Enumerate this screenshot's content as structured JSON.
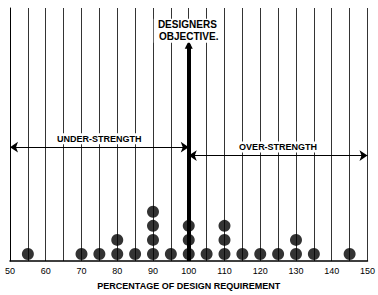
{
  "chart_data": {
    "type": "dot",
    "x_label": "PERCENTAGE OF DESIGN REQUIREMENT",
    "x": [
      55,
      70,
      75,
      80,
      85,
      90,
      95,
      100,
      105,
      110,
      115,
      120,
      125,
      130,
      135,
      145
    ],
    "values": [
      1,
      1,
      1,
      2,
      1,
      4,
      1,
      3,
      1,
      3,
      1,
      1,
      1,
      2,
      1,
      1
    ],
    "color": "#000000",
    "marker": "circle",
    "xlim": [
      50,
      150
    ],
    "xticks": [
      50,
      60,
      70,
      80,
      90,
      100,
      110,
      120,
      130,
      140,
      150
    ],
    "ylim": [
      0,
      18
    ],
    "grid": true,
    "tick_labels": "x",
    "annotations": [
      {
        "text": "DESIGNERS OBJECTIVE.",
        "x": 100
      },
      {
        "text": "UNDER-STRENGTH",
        "x": [
          50,
          100
        ],
        "y": 8.1
      },
      {
        "text": "OVER-STRENGTH",
        "x": [
          100,
          150
        ],
        "y": 7.5
      }
    ]
  }
}
